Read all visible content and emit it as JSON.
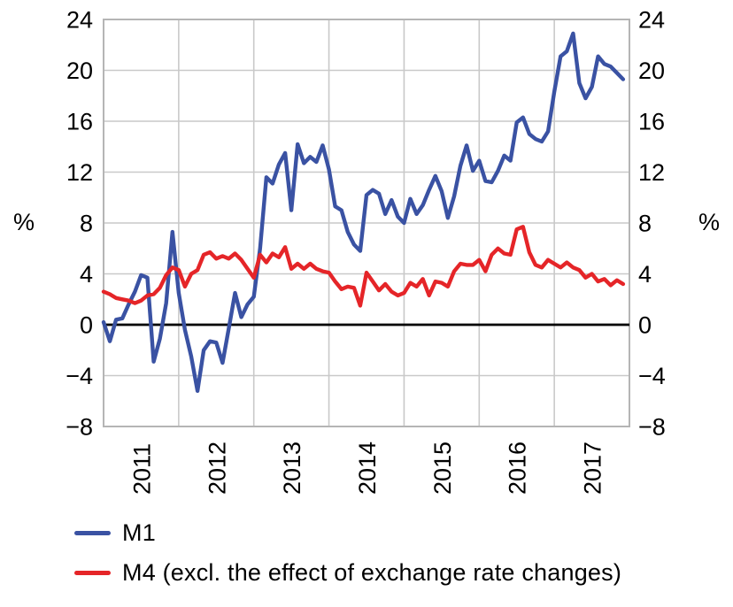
{
  "chart_data": {
    "type": "line",
    "title": "",
    "ylabel_left": "%",
    "ylabel_right": "%",
    "ylim": [
      -8,
      24
    ],
    "ytick_values": [
      24,
      20,
      16,
      12,
      8,
      4,
      0,
      -4,
      -8
    ],
    "ytick_labels": [
      "24",
      "20",
      "16",
      "12",
      "8",
      "4",
      "0",
      "−4",
      "−8"
    ],
    "x_year_labels": [
      "2011",
      "2012",
      "2013",
      "2014",
      "2015",
      "2016",
      "2017"
    ],
    "x_start_month": "2011-01",
    "x_end_month": "2017-12",
    "grid": true,
    "zero_line": true,
    "legend_position": "bottom-left",
    "grid_color": "#c9c9c9",
    "border_color": "#b5b5b5",
    "zero_line_color": "#000000",
    "series": [
      {
        "name": "M1",
        "color": "#3a52a3",
        "values": [
          0.2,
          -1.3,
          0.4,
          0.5,
          1.6,
          2.6,
          3.9,
          3.7,
          -2.9,
          -1.1,
          1.7,
          7.3,
          2.5,
          -0.4,
          -2.5,
          -5.2,
          -2.0,
          -1.3,
          -1.4,
          -3.0,
          -0.3,
          2.5,
          0.6,
          1.6,
          2.2,
          6.0,
          11.6,
          11.1,
          12.6,
          13.5,
          9.0,
          14.2,
          12.7,
          13.2,
          12.8,
          14.1,
          12.2,
          9.3,
          9.0,
          7.3,
          6.3,
          5.8,
          10.2,
          10.6,
          10.3,
          8.7,
          9.8,
          8.5,
          8.0,
          9.9,
          8.7,
          9.4,
          10.6,
          11.7,
          10.5,
          8.4,
          10.1,
          12.5,
          14.1,
          12.1,
          12.9,
          11.3,
          11.2,
          12.1,
          13.3,
          12.9,
          15.9,
          16.3,
          15.0,
          14.6,
          14.4,
          15.2,
          18.3,
          21.1,
          21.5,
          22.9,
          19.0,
          17.8,
          18.7,
          21.1,
          20.5,
          20.3,
          19.8,
          19.3
        ]
      },
      {
        "name": "M4 (excl. the effect of exchange rate changes)",
        "color": "#e52528",
        "values": [
          2.6,
          2.4,
          2.1,
          2.0,
          1.9,
          1.7,
          1.9,
          2.3,
          2.4,
          2.9,
          3.9,
          4.5,
          4.3,
          3.0,
          4.0,
          4.3,
          5.5,
          5.7,
          5.2,
          5.4,
          5.2,
          5.6,
          5.1,
          4.4,
          3.7,
          5.5,
          4.9,
          5.6,
          5.3,
          6.1,
          4.4,
          4.8,
          4.4,
          4.8,
          4.4,
          4.2,
          4.1,
          3.4,
          2.8,
          3.0,
          2.9,
          1.5,
          4.1,
          3.4,
          2.7,
          3.2,
          2.6,
          2.3,
          2.5,
          3.3,
          3.0,
          3.6,
          2.3,
          3.4,
          3.3,
          3.0,
          4.2,
          4.8,
          4.7,
          4.7,
          5.1,
          4.2,
          5.5,
          6.0,
          5.6,
          5.5,
          7.5,
          7.7,
          5.7,
          4.7,
          4.5,
          5.1,
          4.8,
          4.5,
          4.9,
          4.5,
          4.3,
          3.7,
          4.0,
          3.4,
          3.6,
          3.1,
          3.5,
          3.2
        ]
      }
    ]
  },
  "axes": {
    "left_percent": "%",
    "right_percent": "%"
  },
  "legend": {
    "items": [
      {
        "label": "M1"
      },
      {
        "label": "M4 (excl. the effect of exchange rate changes)"
      }
    ]
  }
}
